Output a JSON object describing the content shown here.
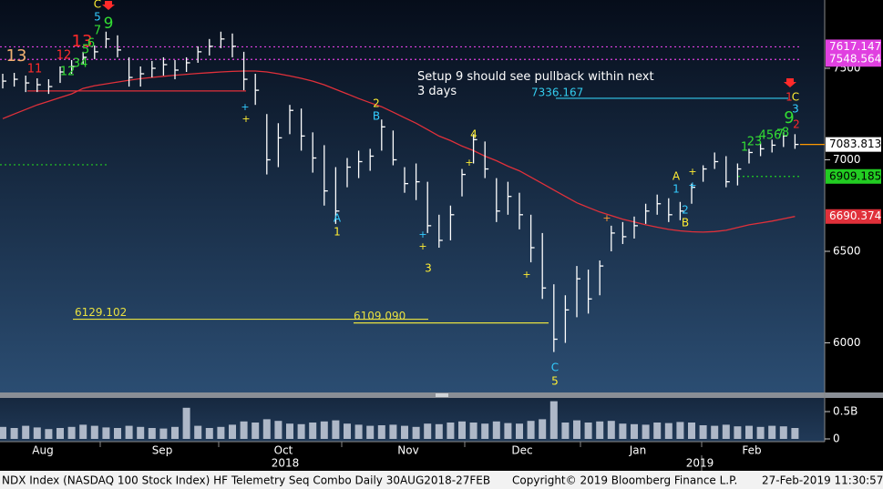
{
  "chart_data": {
    "type": "ohlc",
    "title": "NDX Index (NASDAQ 100 Stock Index) HF Telemetry Seq Combo  Daily 30AUG2018-27FEB",
    "copyright": "Copyright© 2019 Bloomberg Finance L.P.",
    "timestamp": "27-Feb-2019 11:30:57",
    "note": "Setup 9 should see pullback within next 3 days",
    "months": [
      "Aug",
      "Sep",
      "Oct",
      "Nov",
      "Dec",
      "Jan",
      "Feb"
    ],
    "years": [
      "2018",
      "2019"
    ],
    "ylim": [
      5734,
      7873
    ],
    "yticks": [
      6000,
      6500,
      7000,
      7500
    ],
    "grid": false,
    "color": "#ffffff",
    "high": [
      7470,
      7475,
      7460,
      7445,
      7440,
      7510,
      7545,
      7590,
      7625,
      7700,
      7680,
      7560,
      7510,
      7540,
      7560,
      7545,
      7560,
      7620,
      7660,
      7700,
      7690,
      7590,
      7470,
      7250,
      7200,
      7300,
      7280,
      7150,
      7080,
      6960,
      7010,
      7050,
      7060,
      7220,
      7160,
      6960,
      6980,
      6880,
      6700,
      6750,
      6950,
      7140,
      7100,
      6900,
      6880,
      6820,
      6700,
      6600,
      6320,
      6260,
      6420,
      6400,
      6450,
      6640,
      6660,
      6690,
      6760,
      6810,
      6790,
      6770,
      6870,
      6970,
      7040,
      7020,
      6980,
      7060,
      7090,
      7110,
      7150,
      7140
    ],
    "low": [
      7390,
      7400,
      7370,
      7370,
      7360,
      7420,
      7470,
      7520,
      7550,
      7610,
      7560,
      7400,
      7400,
      7450,
      7460,
      7440,
      7480,
      7530,
      7570,
      7610,
      7560,
      7380,
      7300,
      6920,
      6960,
      7140,
      7050,
      6930,
      6750,
      6650,
      6850,
      6900,
      6940,
      7050,
      6970,
      6820,
      6780,
      6600,
      6520,
      6560,
      6800,
      6980,
      6900,
      6660,
      6700,
      6620,
      6440,
      6240,
      5950,
      6000,
      6140,
      6160,
      6260,
      6500,
      6540,
      6570,
      6650,
      6700,
      6660,
      6670,
      6760,
      6880,
      6950,
      6850,
      6860,
      6980,
      7020,
      7040,
      7070,
      7060
    ],
    "close": [
      7430,
      7440,
      7420,
      7410,
      7400,
      7480,
      7510,
      7560,
      7590,
      7660,
      7600,
      7450,
      7470,
      7500,
      7520,
      7490,
      7530,
      7590,
      7620,
      7660,
      7620,
      7440,
      7380,
      7000,
      7120,
      7270,
      7130,
      7010,
      6830,
      6720,
      6960,
      6990,
      7020,
      7180,
      7000,
      6870,
      6880,
      6640,
      6560,
      6700,
      6920,
      7110,
      6950,
      6720,
      6800,
      6700,
      6520,
      6300,
      6020,
      6180,
      6350,
      6240,
      6420,
      6600,
      6580,
      6640,
      6720,
      6760,
      6700,
      6720,
      6850,
      6950,
      6990,
      6880,
      6950,
      7040,
      7060,
      7080,
      7130,
      7084
    ],
    "ma": {
      "color": "#e0303a",
      "values": [
        7225,
        7250,
        7275,
        7300,
        7320,
        7340,
        7360,
        7390,
        7405,
        7415,
        7425,
        7435,
        7443,
        7450,
        7456,
        7462,
        7467,
        7472,
        7476,
        7480,
        7483,
        7485,
        7485,
        7480,
        7470,
        7458,
        7445,
        7430,
        7410,
        7385,
        7360,
        7335,
        7312,
        7290,
        7260,
        7230,
        7200,
        7165,
        7130,
        7105,
        7075,
        7050,
        7020,
        6995,
        6965,
        6940,
        6905,
        6870,
        6835,
        6800,
        6765,
        6740,
        6715,
        6695,
        6675,
        6660,
        6645,
        6632,
        6620,
        6612,
        6607,
        6605,
        6608,
        6615,
        6630,
        6645,
        6655,
        6665,
        6678,
        6690.374
      ]
    },
    "volume": {
      "color": "#aeb8c8",
      "ylim": [
        0,
        0.75
      ],
      "yticks": [
        {
          "value": 0.5,
          "label": "0.5B"
        },
        0
      ],
      "values": [
        0.22,
        0.2,
        0.24,
        0.21,
        0.18,
        0.2,
        0.22,
        0.26,
        0.24,
        0.21,
        0.2,
        0.24,
        0.22,
        0.2,
        0.19,
        0.22,
        0.57,
        0.24,
        0.2,
        0.22,
        0.26,
        0.32,
        0.3,
        0.36,
        0.33,
        0.28,
        0.27,
        0.3,
        0.32,
        0.34,
        0.28,
        0.26,
        0.24,
        0.25,
        0.26,
        0.24,
        0.22,
        0.28,
        0.27,
        0.3,
        0.32,
        0.3,
        0.28,
        0.32,
        0.29,
        0.28,
        0.33,
        0.36,
        0.69,
        0.3,
        0.34,
        0.3,
        0.32,
        0.33,
        0.28,
        0.27,
        0.26,
        0.3,
        0.29,
        0.31,
        0.3,
        0.25,
        0.24,
        0.26,
        0.23,
        0.24,
        0.22,
        0.24,
        0.23,
        0.2
      ]
    },
    "levels": [
      {
        "value": 7617.147,
        "color": "#e040e0",
        "style": "dotted",
        "label_at": "axis",
        "text_color": "#ffffff"
      },
      {
        "value": 7548.564,
        "color": "#e040e0",
        "style": "dotted",
        "label_at": "axis",
        "text_color": "#ffffff"
      },
      {
        "value": 7336.167,
        "color": "#33ccee",
        "style": "solid",
        "label_at": "inline",
        "text_color": "#33ccee"
      },
      {
        "value": 7083.813,
        "color": "#ff9900",
        "style": "solid",
        "label_at": "axis",
        "text_color": "#000000",
        "tag_color": "#ffffff"
      },
      {
        "value": 6909.185,
        "color": "#22cc22",
        "style": "dotted",
        "label_at": "axis",
        "text_color": "#000000"
      },
      {
        "value": 6690.374,
        "color": "#e0303a",
        "style": "none",
        "label_at": "axis",
        "text_color": "#ffffff"
      },
      {
        "value": 6129.102,
        "color": "#e8e040",
        "style": "solid",
        "label_at": "inline",
        "text_color": "#e8e040"
      },
      {
        "value": 6109.09,
        "label": "6109.090",
        "color": "#e8e040",
        "style": "solid",
        "label_at": "inline",
        "text_color": "#e8e040"
      },
      {
        "value": 7376,
        "color": "#e0303a",
        "style": "solid",
        "label_at": "none"
      },
      {
        "value": 6973,
        "color": "#22cc22",
        "style": "dotted",
        "label_at": "none"
      }
    ],
    "annotations": [
      {
        "text": "13",
        "color": "#f0b070"
      },
      {
        "text": "13",
        "color": "#ff2a2a"
      },
      {
        "text": "12",
        "color": "#ff2a2a"
      },
      {
        "text": "11",
        "color": "#ff2a2a"
      },
      {
        "text": "12",
        "color": "#33dd33"
      },
      {
        "text": "34",
        "color": "#33dd33"
      },
      {
        "text": "5",
        "color": "#33dd33"
      },
      {
        "text": "6",
        "color": "#33dd33"
      },
      {
        "text": "7",
        "color": "#33dd33"
      },
      {
        "text": "9",
        "color": "#33dd33"
      },
      {
        "text": "C",
        "color": "#ffee33"
      },
      {
        "text": "5",
        "color": "#33ccff"
      },
      {
        "text": "+",
        "color": "#33ccff"
      },
      {
        "text": "+",
        "color": "#ffee33"
      },
      {
        "text": "2",
        "color": "#ffee33"
      },
      {
        "text": "B",
        "color": "#33ccff"
      },
      {
        "text": "A",
        "color": "#33ccff"
      },
      {
        "text": "1",
        "color": "#ffee33"
      },
      {
        "text": "+",
        "color": "#33ccff"
      },
      {
        "text": "+",
        "color": "#ffee33"
      },
      {
        "text": "3",
        "color": "#ffee33"
      },
      {
        "text": "4",
        "color": "#ffee33"
      },
      {
        "text": "+",
        "color": "#ffee33"
      },
      {
        "text": "+",
        "color": "#ffee33"
      },
      {
        "text": "C",
        "color": "#33ccff"
      },
      {
        "text": "5",
        "color": "#ffee33"
      },
      {
        "text": "+",
        "color": "#ff9933"
      },
      {
        "text": "A",
        "color": "#ffee33"
      },
      {
        "text": "1",
        "color": "#33ccff"
      },
      {
        "text": "+",
        "color": "#ffee33"
      },
      {
        "text": "+",
        "color": "#33ccff"
      },
      {
        "text": "2",
        "color": "#33ccff"
      },
      {
        "text": "B",
        "color": "#ffee33"
      },
      {
        "text": "1",
        "color": "#33dd33"
      },
      {
        "text": "23",
        "color": "#33dd33"
      },
      {
        "text": "456",
        "color": "#33dd33"
      },
      {
        "text": "7",
        "color": "#33dd33"
      },
      {
        "text": "8",
        "color": "#33dd33"
      },
      {
        "text": "9",
        "color": "#33dd33"
      },
      {
        "text": "1",
        "color": "#ff2a2a"
      },
      {
        "text": "C",
        "color": "#ffee33"
      },
      {
        "text": "3",
        "color": "#33ccff"
      },
      {
        "text": "2",
        "color": "#ff2a2a"
      }
    ]
  }
}
